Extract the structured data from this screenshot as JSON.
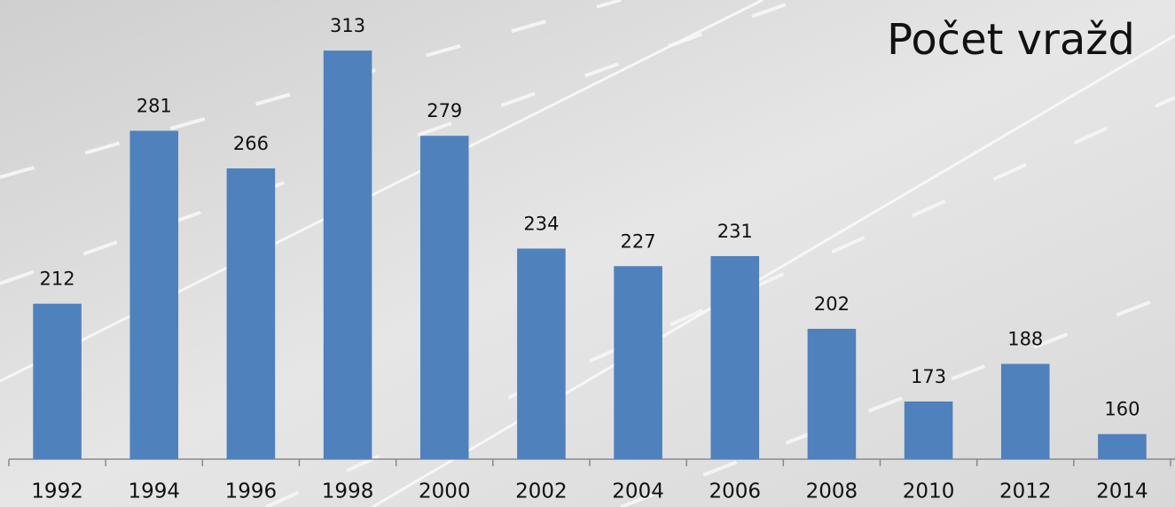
{
  "chart_data": {
    "type": "bar",
    "title": "Počet vražd",
    "categories": [
      "1992",
      "1994",
      "1996",
      "1998",
      "2000",
      "2002",
      "2004",
      "2006",
      "2008",
      "2010",
      "2012",
      "2014"
    ],
    "values": [
      212,
      281,
      266,
      313,
      279,
      234,
      227,
      231,
      202,
      173,
      188,
      160
    ],
    "color": "#4f81bd",
    "ylim": [
      150,
      330
    ]
  }
}
